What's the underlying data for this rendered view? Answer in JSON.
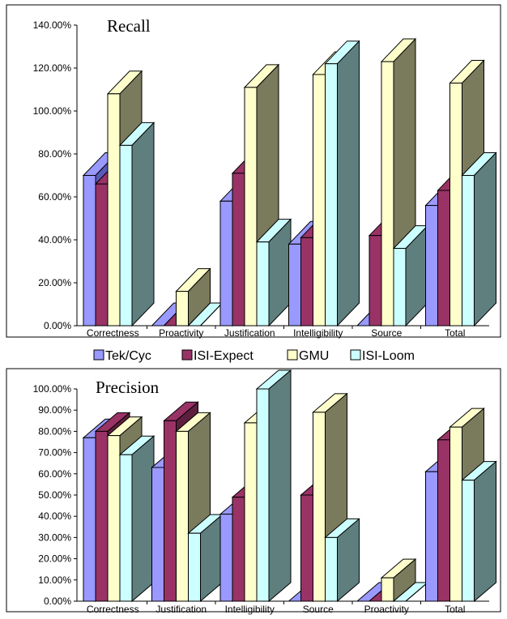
{
  "chart_data": [
    {
      "type": "bar",
      "title": "Recall",
      "categories": [
        "Correctness",
        "Proactivity",
        "Justification",
        "Intelligibility",
        "Source",
        "Total"
      ],
      "y_tick_labels": [
        "0.00%",
        "20.00%",
        "40.00%",
        "60.00%",
        "80.00%",
        "100.00%",
        "120.00%",
        "140.00%"
      ],
      "ylim": [
        0,
        140
      ],
      "series": [
        {
          "name": "Tek/Cyc",
          "values": [
            70,
            0,
            58,
            38,
            0,
            56
          ]
        },
        {
          "name": "ISI-Expect",
          "values": [
            66,
            0,
            71,
            41,
            42,
            63
          ]
        },
        {
          "name": "GMU",
          "values": [
            108,
            16,
            111,
            117,
            123,
            113
          ]
        },
        {
          "name": "ISI-Loom",
          "values": [
            84,
            0,
            39,
            122,
            36,
            70
          ]
        }
      ],
      "legend": "bottom",
      "colors": [
        "#9999ff",
        "#993366",
        "#ffffcc",
        "#ccffff"
      ],
      "side_colors": [
        "#5a5ab8",
        "#5e1f3e",
        "#7a7a5c",
        "#5f7f7f"
      ]
    },
    {
      "type": "bar",
      "title": "Precision",
      "categories": [
        "Correctness",
        "Justification",
        "Intelligibility",
        "Source",
        "Proactivity",
        "Total"
      ],
      "y_tick_labels": [
        "0.00%",
        "10.00%",
        "20.00%",
        "30.00%",
        "40.00%",
        "50.00%",
        "60.00%",
        "70.00%",
        "80.00%",
        "90.00%",
        "100.00%"
      ],
      "ylim": [
        0,
        100
      ],
      "series": [
        {
          "name": "Tek/Cyc",
          "values": [
            77,
            63,
            41,
            0,
            0,
            61
          ]
        },
        {
          "name": "ISI-Expect",
          "values": [
            80,
            85,
            49,
            50,
            0,
            76
          ]
        },
        {
          "name": "GMU",
          "values": [
            78,
            80,
            84,
            89,
            11,
            82
          ]
        },
        {
          "name": "ISI-Loom",
          "values": [
            69,
            32,
            100,
            30,
            0,
            57
          ]
        }
      ],
      "colors": [
        "#9999ff",
        "#993366",
        "#ffffcc",
        "#ccffff"
      ],
      "side_colors": [
        "#5a5ab8",
        "#5e1f3e",
        "#7a7a5c",
        "#5f7f7f"
      ]
    }
  ],
  "legend": {
    "items": [
      "Tek/Cyc",
      "ISI-Expect",
      "GMU",
      "ISI-Loom"
    ]
  }
}
